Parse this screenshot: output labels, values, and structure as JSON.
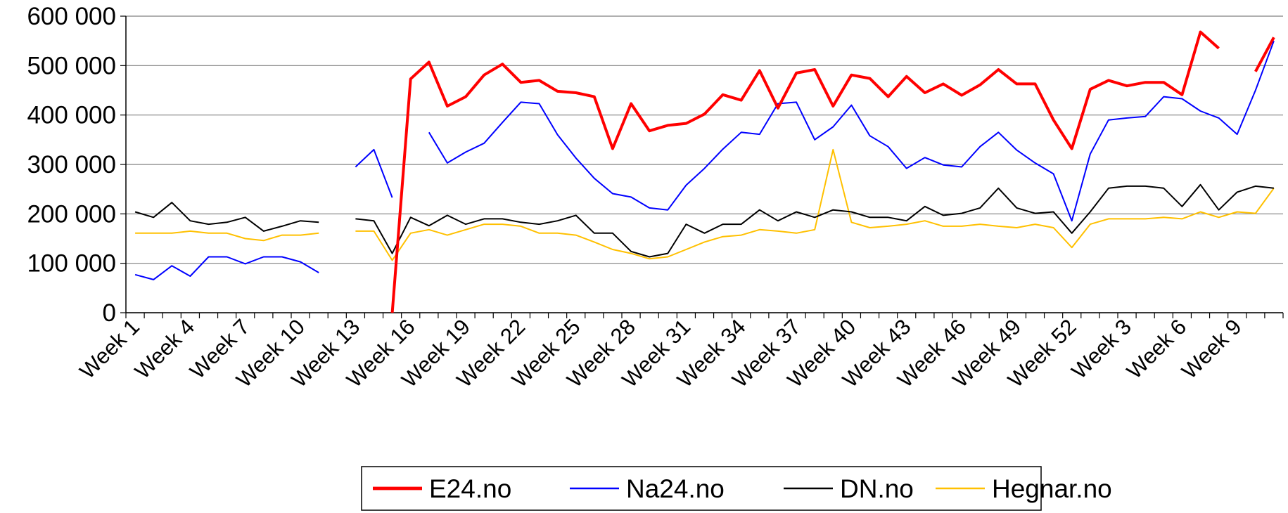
{
  "chart_data": {
    "type": "line",
    "categories": [
      "Week 1",
      null,
      null,
      "Week 4",
      null,
      null,
      "Week 7",
      null,
      null,
      "Week 10",
      null,
      null,
      "Week 13",
      null,
      null,
      "Week 16",
      null,
      null,
      "Week 19",
      null,
      null,
      "Week 22",
      null,
      null,
      "Week 25",
      null,
      null,
      "Week 28",
      null,
      null,
      "Week 31",
      null,
      null,
      "Week 34",
      null,
      null,
      "Week 37",
      null,
      null,
      "Week 40",
      null,
      null,
      "Week 43",
      null,
      null,
      "Week 46",
      null,
      null,
      "Week 49",
      null,
      null,
      "Week 52",
      null,
      null,
      "Week 3",
      null,
      null,
      "Week 6",
      null,
      null,
      "Week 9",
      null,
      null
    ],
    "series": [
      {
        "name": "E24.no",
        "color": "#ff0000",
        "width": 4,
        "values": [
          null,
          null,
          null,
          null,
          null,
          null,
          null,
          null,
          null,
          null,
          null,
          null,
          null,
          null,
          0,
          473000,
          507000,
          418000,
          437000,
          481000,
          503000,
          466000,
          470000,
          448000,
          445000,
          437000,
          332000,
          423000,
          368000,
          379000,
          383000,
          402000,
          441000,
          430000,
          490000,
          414000,
          485000,
          492000,
          418000,
          481000,
          474000,
          437000,
          478000,
          445000,
          463000,
          440000,
          461000,
          492000,
          463000,
          463000,
          390000,
          332000,
          452000,
          470000,
          459000,
          466000,
          466000,
          441000,
          568000,
          535000,
          null,
          488000,
          557000
        ]
      },
      {
        "name": "Na24.no",
        "color": "#0000ff",
        "width": 2,
        "values": [
          77000,
          67000,
          95000,
          74000,
          113000,
          113000,
          99000,
          113000,
          113000,
          103000,
          81000,
          null,
          295000,
          330000,
          233000,
          null,
          365000,
          303000,
          325000,
          343000,
          385000,
          426000,
          423000,
          360000,
          313000,
          272000,
          241000,
          234000,
          212000,
          208000,
          258000,
          292000,
          331000,
          365000,
          361000,
          423000,
          426000,
          350000,
          376000,
          420000,
          358000,
          336000,
          292000,
          314000,
          299000,
          295000,
          336000,
          365000,
          329000,
          303000,
          281000,
          186000,
          321000,
          390000,
          394000,
          397000,
          437000,
          433000,
          408000,
          394000,
          361000,
          450000,
          550000
        ]
      },
      {
        "name": "DN.no",
        "color": "#000000",
        "width": 2,
        "values": [
          204000,
          193000,
          223000,
          186000,
          179000,
          183000,
          193000,
          165000,
          175000,
          186000,
          183000,
          null,
          190000,
          186000,
          120000,
          193000,
          176000,
          197000,
          179000,
          190000,
          190000,
          183000,
          179000,
          186000,
          197000,
          161000,
          161000,
          124000,
          113000,
          120000,
          179000,
          161000,
          179000,
          179000,
          208000,
          186000,
          204000,
          193000,
          208000,
          204000,
          193000,
          193000,
          186000,
          215000,
          197000,
          201000,
          212000,
          252000,
          212000,
          201000,
          204000,
          161000,
          204000,
          252000,
          256000,
          256000,
          252000,
          215000,
          259000,
          208000,
          244000,
          256000,
          252000
        ]
      },
      {
        "name": "Hegnar.no",
        "color": "#ffc000",
        "width": 2,
        "values": [
          161000,
          161000,
          161000,
          165000,
          161000,
          161000,
          150000,
          146000,
          157000,
          157000,
          161000,
          null,
          165000,
          165000,
          106000,
          161000,
          168000,
          157000,
          168000,
          179000,
          179000,
          175000,
          161000,
          161000,
          157000,
          143000,
          128000,
          120000,
          109000,
          113000,
          128000,
          143000,
          154000,
          157000,
          168000,
          165000,
          161000,
          168000,
          330000,
          183000,
          172000,
          175000,
          179000,
          186000,
          175000,
          175000,
          179000,
          175000,
          172000,
          179000,
          172000,
          132000,
          179000,
          190000,
          190000,
          190000,
          193000,
          190000,
          204000,
          193000,
          204000,
          201000,
          252000
        ]
      }
    ],
    "ylim": [
      0,
      600000
    ],
    "yticks": [
      0,
      {
        "value": 100000,
        "label": "100 000"
      },
      {
        "value": 200000,
        "label": "200 000"
      },
      {
        "value": 300000,
        "label": "300 000"
      },
      {
        "value": 400000,
        "label": "400 000"
      },
      {
        "value": 500000,
        "label": "500 000"
      },
      {
        "value": 600000,
        "label": "600 000"
      }
    ],
    "grid": true,
    "legend": "bottom"
  }
}
